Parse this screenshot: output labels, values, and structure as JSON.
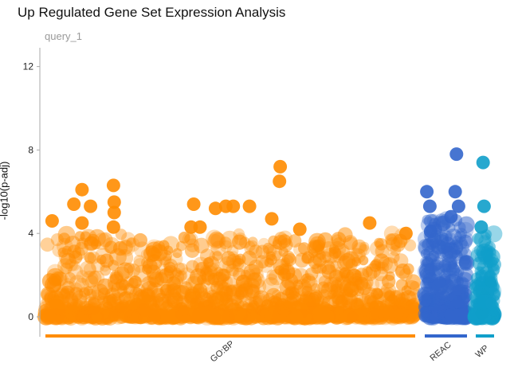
{
  "title": "Up Regulated Gene Set Expression Analysis",
  "subtitle": "query_1",
  "chart_data": {
    "type": "scatter",
    "title": "Up Regulated Gene Set Expression Analysis",
    "subtitle": "query_1",
    "xlabel": "",
    "ylabel": "-log10(p-adj)",
    "ylim": [
      -0.9,
      13
    ],
    "yticks": [
      0,
      4,
      8,
      12
    ],
    "grid": false,
    "categories": [
      "GO:BP",
      "REAC",
      "WP"
    ],
    "category_colors": {
      "GO:BP": "#ff8c00",
      "REAC": "#3366cc",
      "WP": "#109fca"
    },
    "highlighted_points": [
      {
        "source": "GO:BP",
        "x_frac": 0.018,
        "y": 4.6
      },
      {
        "source": "GO:BP",
        "x_frac": 0.077,
        "y": 5.4
      },
      {
        "source": "GO:BP",
        "x_frac": 0.099,
        "y": 6.1
      },
      {
        "source": "GO:BP",
        "x_frac": 0.099,
        "y": 4.5
      },
      {
        "source": "GO:BP",
        "x_frac": 0.122,
        "y": 5.3
      },
      {
        "source": "GO:BP",
        "x_frac": 0.184,
        "y": 6.3
      },
      {
        "source": "GO:BP",
        "x_frac": 0.186,
        "y": 5.5
      },
      {
        "source": "GO:BP",
        "x_frac": 0.186,
        "y": 5.0
      },
      {
        "source": "GO:BP",
        "x_frac": 0.184,
        "y": 4.3
      },
      {
        "source": "GO:BP",
        "x_frac": 0.401,
        "y": 5.4
      },
      {
        "source": "GO:BP",
        "x_frac": 0.394,
        "y": 4.3
      },
      {
        "source": "GO:BP",
        "x_frac": 0.418,
        "y": 4.3
      },
      {
        "source": "GO:BP",
        "x_frac": 0.46,
        "y": 5.2
      },
      {
        "source": "GO:BP",
        "x_frac": 0.488,
        "y": 5.3
      },
      {
        "source": "GO:BP",
        "x_frac": 0.508,
        "y": 5.3
      },
      {
        "source": "GO:BP",
        "x_frac": 0.552,
        "y": 5.3
      },
      {
        "source": "GO:BP",
        "x_frac": 0.612,
        "y": 4.7
      },
      {
        "source": "GO:BP",
        "x_frac": 0.635,
        "y": 7.2
      },
      {
        "source": "GO:BP",
        "x_frac": 0.633,
        "y": 6.5
      },
      {
        "source": "GO:BP",
        "x_frac": 0.688,
        "y": 4.2
      },
      {
        "source": "GO:BP",
        "x_frac": 0.877,
        "y": 4.5
      },
      {
        "source": "GO:BP",
        "x_frac": 0.975,
        "y": 4.0
      },
      {
        "source": "REAC",
        "x_frac": 0.05,
        "y": 6.0
      },
      {
        "source": "REAC",
        "x_frac": 0.75,
        "y": 7.8
      },
      {
        "source": "REAC",
        "x_frac": 0.72,
        "y": 6.0
      },
      {
        "source": "REAC",
        "x_frac": 0.12,
        "y": 5.3
      },
      {
        "source": "REAC",
        "x_frac": 0.8,
        "y": 5.3
      },
      {
        "source": "REAC",
        "x_frac": 0.14,
        "y": 4.1
      },
      {
        "source": "REAC",
        "x_frac": 0.62,
        "y": 4.8
      },
      {
        "source": "WP",
        "x_frac": 0.4,
        "y": 7.4
      },
      {
        "source": "WP",
        "x_frac": 0.45,
        "y": 5.3
      },
      {
        "source": "WP",
        "x_frac": 0.3,
        "y": 4.3
      }
    ]
  }
}
